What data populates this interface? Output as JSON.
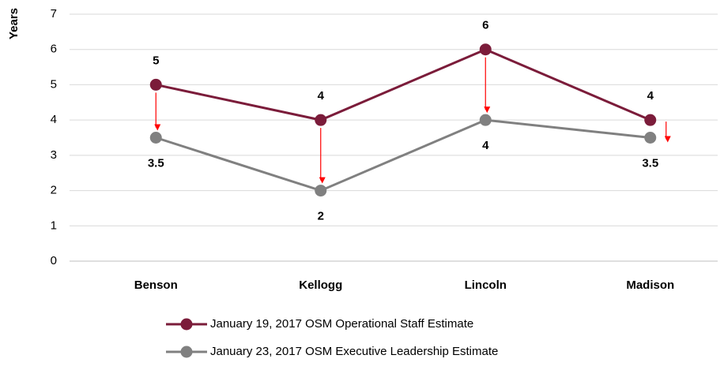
{
  "chart_data": {
    "type": "line",
    "y_label": "Years",
    "categories": [
      "Benson",
      "Kellogg",
      "Lincoln",
      "Madison"
    ],
    "series": [
      {
        "name": "January 19, 2017 OSM Operational Staff Estimate",
        "color": "#7b1c3a",
        "values": [
          5,
          4,
          6,
          4
        ]
      },
      {
        "name": "January 23, 2017 OSM Executive Leadership Estimate",
        "color": "#808080",
        "values": [
          3.5,
          2,
          4,
          3.5
        ]
      }
    ],
    "ylim": [
      0,
      7
    ],
    "yticks": [
      0,
      1,
      2,
      3,
      4,
      5,
      6,
      7
    ],
    "grid": true,
    "legend": "bottom"
  }
}
